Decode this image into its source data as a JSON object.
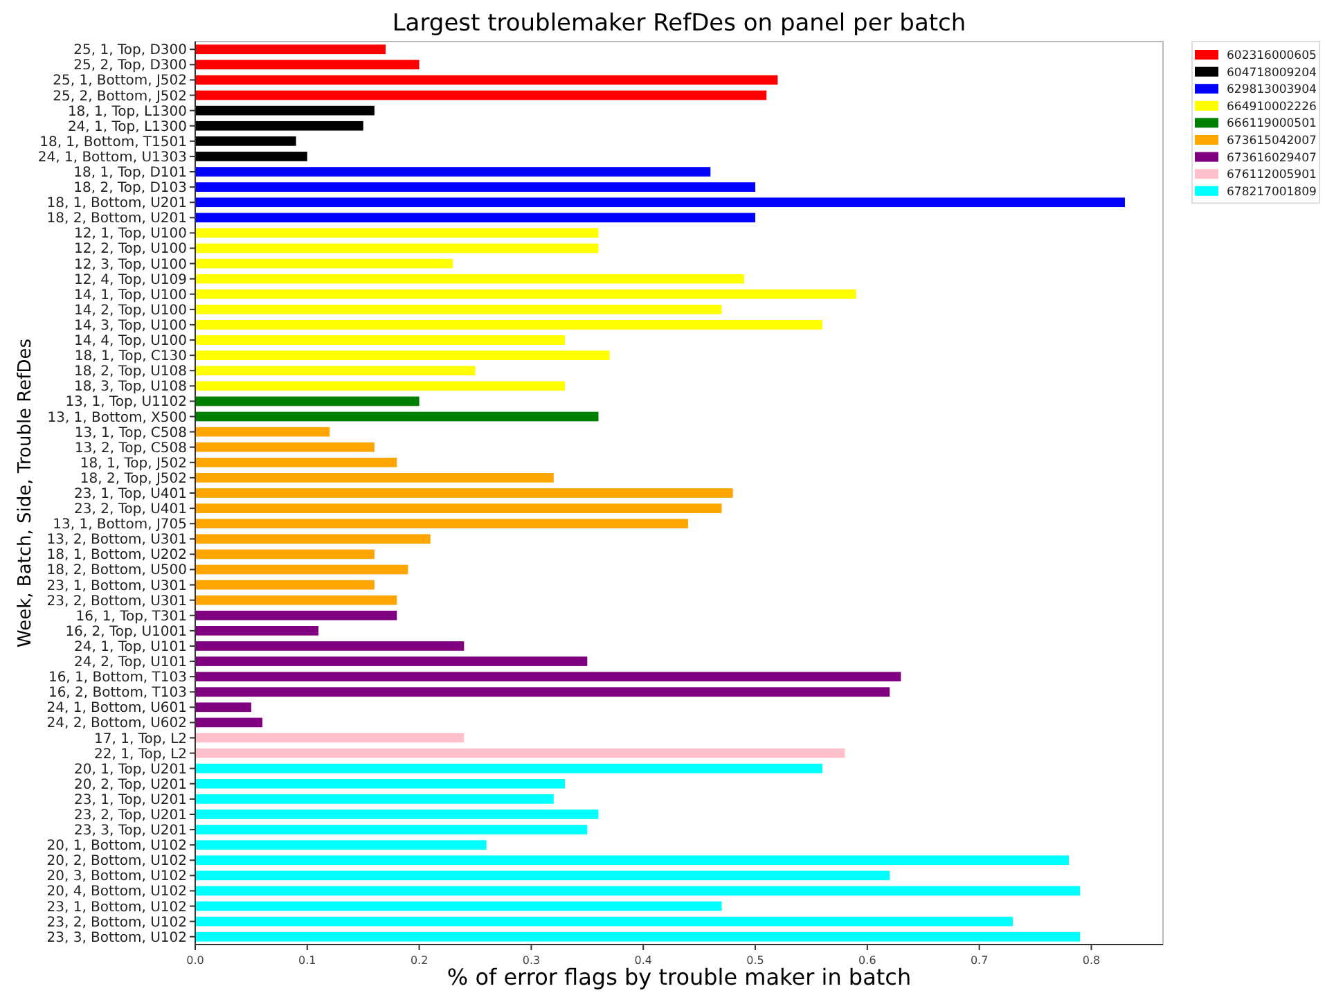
{
  "chart_data": {
    "type": "bar",
    "orientation": "horizontal",
    "title": "Largest troublemaker RefDes on panel per batch",
    "xlabel": "% of error flags by trouble maker in batch",
    "ylabel": "Week, Batch, Side, Trouble RefDes",
    "categories": [
      "25, 1, Top, D300",
      "25, 2, Top, D300",
      "25, 1, Bottom, J502",
      "25, 2, Bottom, J502",
      "18, 1, Top, L1300",
      "24, 1, Top, L1300",
      "18, 1, Bottom, T1501",
      "24, 1, Bottom, U1303",
      "18, 1, Top, D101",
      "18, 2, Top, D103",
      "18, 1, Bottom, U201",
      "18, 2, Bottom, U201",
      "12, 1, Top, U100",
      "12, 2, Top, U100",
      "12, 3, Top, U100",
      "12, 4, Top, U109",
      "14, 1, Top, U100",
      "14, 2, Top, U100",
      "14, 3, Top, U100",
      "14, 4, Top, U100",
      "18, 1, Top, C130",
      "18, 2, Top, U108",
      "18, 3, Top, U108",
      "13, 1, Top, U1102",
      "13, 1, Bottom, X500",
      "13, 1, Top, C508",
      "13, 2, Top, C508",
      "18, 1, Top, J502",
      "18, 2, Top, J502",
      "23, 1, Top, U401",
      "23, 2, Top, U401",
      "13, 1, Bottom, J705",
      "13, 2, Bottom, U301",
      "18, 1, Bottom, U202",
      "18, 2, Bottom, U500",
      "23, 1, Bottom, U301",
      "23, 2, Bottom, U301",
      "16, 1, Top, T301",
      "16, 2, Top, U1001",
      "24, 1, Top, U101",
      "24, 2, Top, U101",
      "16, 1, Bottom, T103",
      "16, 2, Bottom, T103",
      "24, 1, Bottom, U601",
      "24, 2, Bottom, U602",
      "17, 1, Top, L2",
      "22, 1, Top, L2",
      "20, 1, Top, U201",
      "20, 2, Top, U201",
      "23, 1, Top, U201",
      "23, 2, Top, U201",
      "23, 3, Top, U201",
      "20, 1, Bottom, U102",
      "20, 2, Bottom, U102",
      "20, 3, Bottom, U102",
      "20, 4, Bottom, U102",
      "23, 1, Bottom, U102",
      "23, 2, Bottom, U102",
      "23, 3, Bottom, U102"
    ],
    "series": [
      {
        "name": "602316000605",
        "color": "#ff0000",
        "values": [
          0.17,
          0.2,
          0.52,
          0.51,
          null,
          null,
          null,
          null,
          null,
          null,
          null,
          null,
          null,
          null,
          null,
          null,
          null,
          null,
          null,
          null,
          null,
          null,
          null,
          null,
          null,
          null,
          null,
          null,
          null,
          null,
          null,
          null,
          null,
          null,
          null,
          null,
          null,
          null,
          null,
          null,
          null,
          null,
          null,
          null,
          null,
          null,
          null,
          null,
          null,
          null,
          null,
          null,
          null,
          null,
          null,
          null,
          null,
          null,
          null
        ]
      },
      {
        "name": "604718009204",
        "color": "#000000",
        "values": [
          null,
          null,
          null,
          null,
          0.16,
          0.15,
          0.09,
          0.1,
          null,
          null,
          null,
          null,
          null,
          null,
          null,
          null,
          null,
          null,
          null,
          null,
          null,
          null,
          null,
          null,
          null,
          null,
          null,
          null,
          null,
          null,
          null,
          null,
          null,
          null,
          null,
          null,
          null,
          null,
          null,
          null,
          null,
          null,
          null,
          null,
          null,
          null,
          null,
          null,
          null,
          null,
          null,
          null,
          null,
          null,
          null,
          null,
          null,
          null,
          null
        ]
      },
      {
        "name": "629813003904",
        "color": "#0000ff",
        "values": [
          null,
          null,
          null,
          null,
          null,
          null,
          null,
          null,
          0.46,
          0.5,
          0.83,
          0.5,
          null,
          null,
          null,
          null,
          null,
          null,
          null,
          null,
          null,
          null,
          null,
          null,
          null,
          null,
          null,
          null,
          null,
          null,
          null,
          null,
          null,
          null,
          null,
          null,
          null,
          null,
          null,
          null,
          null,
          null,
          null,
          null,
          null,
          null,
          null,
          null,
          null,
          null,
          null,
          null,
          null,
          null,
          null,
          null,
          null,
          null,
          null
        ]
      },
      {
        "name": "664910002226",
        "color": "#ffff00",
        "values": [
          null,
          null,
          null,
          null,
          null,
          null,
          null,
          null,
          null,
          null,
          null,
          null,
          0.36,
          0.36,
          0.23,
          0.49,
          0.59,
          0.47,
          0.56,
          0.33,
          0.37,
          0.25,
          0.33,
          null,
          null,
          null,
          null,
          null,
          null,
          null,
          null,
          null,
          null,
          null,
          null,
          null,
          null,
          null,
          null,
          null,
          null,
          null,
          null,
          null,
          null,
          null,
          null,
          null,
          null,
          null,
          null,
          null,
          null,
          null,
          null,
          null,
          null,
          null,
          null
        ]
      },
      {
        "name": "666119000501",
        "color": "#008000",
        "values": [
          null,
          null,
          null,
          null,
          null,
          null,
          null,
          null,
          null,
          null,
          null,
          null,
          null,
          null,
          null,
          null,
          null,
          null,
          null,
          null,
          null,
          null,
          null,
          0.2,
          0.36,
          null,
          null,
          null,
          null,
          null,
          null,
          null,
          null,
          null,
          null,
          null,
          null,
          null,
          null,
          null,
          null,
          null,
          null,
          null,
          null,
          null,
          null,
          null,
          null,
          null,
          null,
          null,
          null,
          null,
          null,
          null,
          null,
          null,
          null
        ]
      },
      {
        "name": "673615042007",
        "color": "#ffa500",
        "values": [
          null,
          null,
          null,
          null,
          null,
          null,
          null,
          null,
          null,
          null,
          null,
          null,
          null,
          null,
          null,
          null,
          null,
          null,
          null,
          null,
          null,
          null,
          null,
          null,
          null,
          0.12,
          0.16,
          0.18,
          0.32,
          0.48,
          0.47,
          0.44,
          0.21,
          0.16,
          0.19,
          0.16,
          0.18,
          null,
          null,
          null,
          null,
          null,
          null,
          null,
          null,
          null,
          null,
          null,
          null,
          null,
          null,
          null,
          null,
          null,
          null,
          null,
          null,
          null,
          null
        ]
      },
      {
        "name": "673616029407",
        "color": "#800080",
        "values": [
          null,
          null,
          null,
          null,
          null,
          null,
          null,
          null,
          null,
          null,
          null,
          null,
          null,
          null,
          null,
          null,
          null,
          null,
          null,
          null,
          null,
          null,
          null,
          null,
          null,
          null,
          null,
          null,
          null,
          null,
          null,
          null,
          null,
          null,
          null,
          null,
          null,
          0.18,
          0.11,
          0.24,
          0.35,
          0.63,
          0.62,
          0.05,
          0.06,
          null,
          null,
          null,
          null,
          null,
          null,
          null,
          null,
          null,
          null,
          null,
          null,
          null,
          null
        ]
      },
      {
        "name": "676112005901",
        "color": "#ffc0cb",
        "values": [
          null,
          null,
          null,
          null,
          null,
          null,
          null,
          null,
          null,
          null,
          null,
          null,
          null,
          null,
          null,
          null,
          null,
          null,
          null,
          null,
          null,
          null,
          null,
          null,
          null,
          null,
          null,
          null,
          null,
          null,
          null,
          null,
          null,
          null,
          null,
          null,
          null,
          null,
          null,
          null,
          null,
          null,
          null,
          null,
          null,
          0.24,
          0.58,
          null,
          null,
          null,
          null,
          null,
          null,
          null,
          null,
          null,
          null,
          null,
          null
        ]
      },
      {
        "name": "678217001809",
        "color": "#00ffff",
        "values": [
          null,
          null,
          null,
          null,
          null,
          null,
          null,
          null,
          null,
          null,
          null,
          null,
          null,
          null,
          null,
          null,
          null,
          null,
          null,
          null,
          null,
          null,
          null,
          null,
          null,
          null,
          null,
          null,
          null,
          null,
          null,
          null,
          null,
          null,
          null,
          null,
          null,
          null,
          null,
          null,
          null,
          null,
          null,
          null,
          null,
          null,
          null,
          0.56,
          0.33,
          0.32,
          0.36,
          0.35,
          0.26,
          0.78,
          0.62,
          0.79,
          0.47,
          0.73,
          0.79
        ]
      }
    ],
    "xlim": [
      0,
      0.864
    ],
    "xticks": [
      {
        "value": 0,
        "label": "0.0"
      },
      {
        "value": 0.1,
        "label": "0.1"
      },
      {
        "value": 0.2,
        "label": "0.2"
      },
      {
        "value": 0.3,
        "label": "0.3"
      },
      {
        "value": 0.4,
        "label": "0.4"
      },
      {
        "value": 0.5,
        "label": "0.5"
      },
      {
        "value": 0.6,
        "label": "0.6"
      },
      {
        "value": 0.7,
        "label": "0.7"
      },
      {
        "value": 0.8,
        "label": "0.8"
      }
    ],
    "legend": "top right",
    "grid": false
  }
}
